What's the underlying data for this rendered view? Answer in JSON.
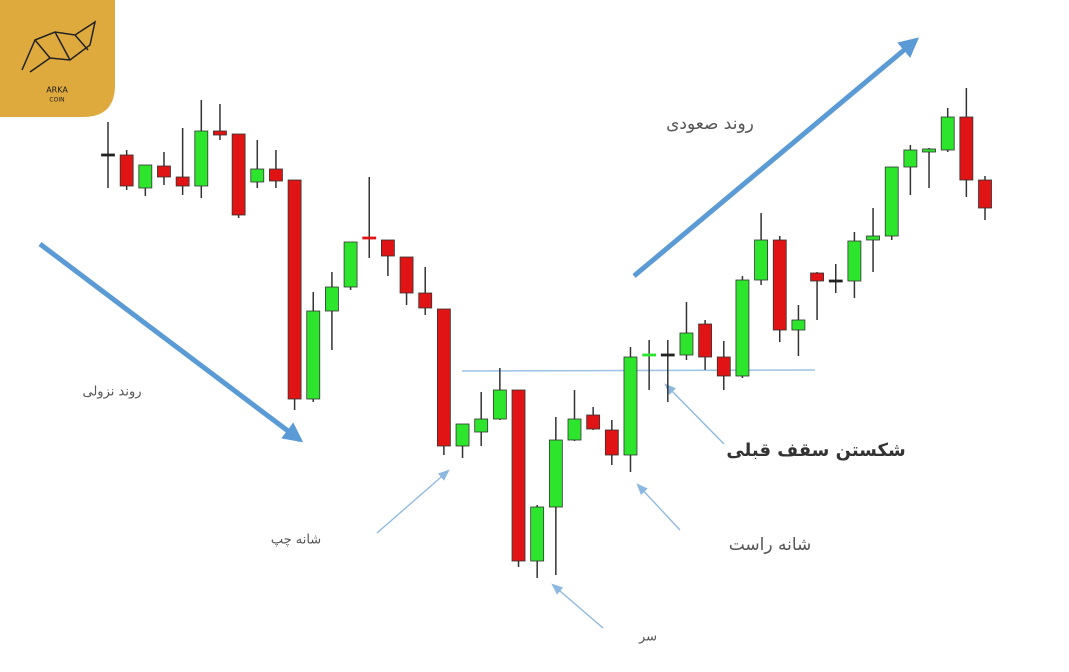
{
  "logo": {
    "name": "ARKA",
    "sub": "COIN"
  },
  "chart_data": {
    "type": "candlestick",
    "ylim": [
      0,
      672
    ],
    "up_color": "#2ee52e",
    "down_color": "#e01414",
    "flat_color": "#222222",
    "open": [
      517,
      517,
      484,
      506,
      495,
      486,
      541,
      538,
      490,
      503,
      492,
      273,
      361,
      385,
      434,
      432,
      415,
      379,
      363,
      226,
      240,
      253,
      282,
      111,
      165,
      232,
      257,
      242,
      217,
      316,
      317,
      317,
      348,
      315,
      296,
      392,
      432,
      342,
      399,
      391,
      391,
      432,
      436,
      505,
      520,
      522,
      555,
      492
    ],
    "high": [
      550,
      522,
      507,
      520,
      544,
      572,
      568,
      538,
      532,
      522,
      492,
      380,
      400,
      430,
      495,
      432,
      415,
      405,
      363,
      248,
      280,
      304,
      282,
      167,
      255,
      282,
      265,
      252,
      325,
      332,
      332,
      370,
      352,
      331,
      396,
      459,
      436,
      367,
      400,
      408,
      440,
      464,
      505,
      527,
      524,
      564,
      584,
      496
    ],
    "low": [
      484,
      482,
      476,
      487,
      477,
      474,
      532,
      454,
      484,
      484,
      262,
      270,
      322,
      382,
      414,
      396,
      367,
      357,
      217,
      214,
      226,
      252,
      105,
      94,
      97,
      231,
      242,
      207,
      200,
      282,
      270,
      312,
      302,
      282,
      294,
      387,
      330,
      316,
      352,
      379,
      374,
      400,
      432,
      477,
      484,
      520,
      475,
      452
    ],
    "close": [
      517,
      486,
      507,
      495,
      486,
      541,
      537,
      457,
      503,
      491,
      273,
      361,
      385,
      430,
      432,
      416,
      379,
      364,
      226,
      248,
      253,
      282,
      111,
      165,
      232,
      253,
      243,
      217,
      315,
      317,
      317,
      339,
      315,
      296,
      392,
      432,
      342,
      352,
      391,
      391,
      431,
      436,
      505,
      522,
      523,
      555,
      492,
      464
    ],
    "annotations": {
      "downtrend": "روند نزولی",
      "uptrend": "روند صعودی",
      "left_shoulder": "شانه چپ",
      "head": "سر",
      "right_shoulder": "شانه راست",
      "breakout": "شکستن سقف قبلی"
    }
  }
}
